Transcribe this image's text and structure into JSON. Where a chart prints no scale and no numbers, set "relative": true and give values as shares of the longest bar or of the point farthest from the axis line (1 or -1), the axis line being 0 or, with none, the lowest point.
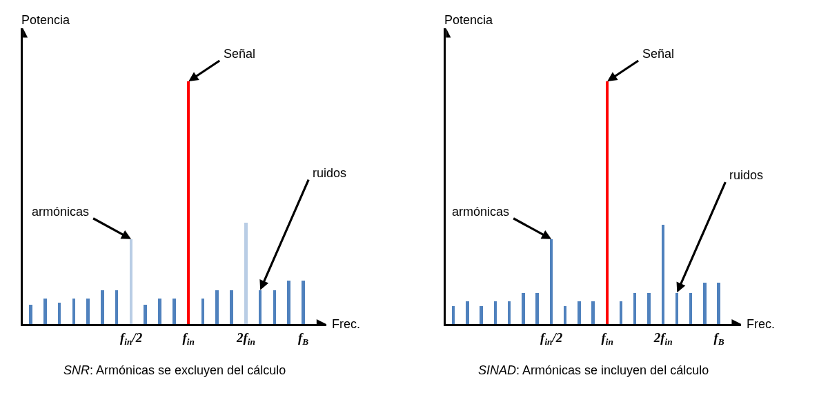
{
  "chart_data": [
    {
      "type": "bar",
      "relative": true,
      "xlabel": "Frec.",
      "ylabel": "Potencia",
      "categories": [
        null,
        null,
        null,
        null,
        null,
        null,
        null,
        "f$_{in}$/2",
        null,
        null,
        null,
        "f$_{in}$",
        null,
        null,
        null,
        "2f$_{in}$",
        null,
        null,
        null,
        "f$_{B}$"
      ],
      "values": [
        0.08,
        0.105,
        0.088,
        0.105,
        0.105,
        0.14,
        0.14,
        0.35,
        0.08,
        0.105,
        0.105,
        1,
        0.105,
        0.14,
        0.14,
        0.42,
        0.14,
        0.14,
        0.18,
        0.18
      ],
      "colors": [
        "#4f81bd",
        "#4f81bd",
        "#4f81bd",
        "#4f81bd",
        "#4f81bd",
        "#4f81bd",
        "#4f81bd",
        "#b9cde5",
        "#4f81bd",
        "#4f81bd",
        "#4f81bd",
        "#ff0000",
        "#4f81bd",
        "#4f81bd",
        "#4f81bd",
        "#b9cde5",
        "#4f81bd",
        "#4f81bd",
        "#4f81bd",
        "#4f81bd"
      ],
      "annotations": [
        "Señal",
        "armónicas",
        "ruidos",
        "SNR: Armónicas se excluyen del cálculo"
      ]
    },
    {
      "type": "bar",
      "relative": true,
      "xlabel": "Frec.",
      "ylabel": "Potencia",
      "categories": [
        null,
        null,
        null,
        null,
        null,
        null,
        null,
        "f$_{in}$/2",
        null,
        null,
        null,
        "f$_{in}$",
        null,
        null,
        null,
        "2f$_{in}$",
        null,
        null,
        null,
        "f$_{B}$"
      ],
      "values": [
        0.076,
        0.096,
        0.076,
        0.096,
        0.096,
        0.13,
        0.13,
        0.35,
        0.076,
        0.096,
        0.096,
        1,
        0.096,
        0.13,
        0.13,
        0.41,
        0.13,
        0.13,
        0.17,
        0.17
      ],
      "colors": [
        "#4f81bd",
        "#4f81bd",
        "#4f81bd",
        "#4f81bd",
        "#4f81bd",
        "#4f81bd",
        "#4f81bd",
        "#4f81bd",
        "#4f81bd",
        "#4f81bd",
        "#4f81bd",
        "#ff0000",
        "#4f81bd",
        "#4f81bd",
        "#4f81bd",
        "#4f81bd",
        "#4f81bd",
        "#4f81bd",
        "#4f81bd",
        "#4f81bd"
      ],
      "annotations": [
        "Señal",
        "armónicas",
        "ruidos",
        "SINAD: Armónicas se incluyen del cálculo"
      ]
    }
  ]
}
